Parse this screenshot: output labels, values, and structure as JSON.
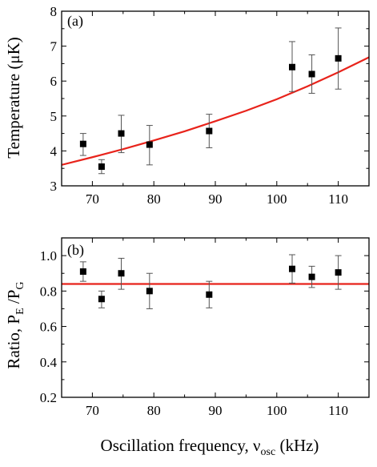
{
  "colors": {
    "fit_line": "#e8231b",
    "markers": "#000000",
    "error_bars": "#555555",
    "axes": "#000000"
  },
  "xlabel": {
    "main": "Oscillation frequency, ν",
    "sub": "osc",
    "unit": " (kHz)"
  },
  "chart_data": [
    {
      "type": "scatter",
      "panel_label": "(a)",
      "ylabel": "Temperature (μK)",
      "xlim": [
        65,
        115
      ],
      "ylim": [
        3,
        8
      ],
      "xticks": [
        70,
        80,
        90,
        100,
        110
      ],
      "yticks": [
        3,
        4,
        5,
        6,
        7,
        8
      ],
      "series": [
        {
          "type": "scatter",
          "marker": "square",
          "x": [
            68.5,
            71.5,
            74.7,
            79.3,
            89.0,
            102.5,
            105.7,
            110.0
          ],
          "y": [
            4.2,
            3.55,
            4.5,
            4.18,
            4.57,
            6.4,
            6.2,
            6.65
          ],
          "yerr_low": [
            0.33,
            0.2,
            0.55,
            0.58,
            0.48,
            0.7,
            0.55,
            0.88
          ],
          "yerr_high": [
            0.3,
            0.2,
            0.52,
            0.55,
            0.48,
            0.73,
            0.55,
            0.87
          ]
        },
        {
          "type": "line",
          "function": "exponential",
          "x": [
            65,
            70,
            75,
            80,
            85,
            90,
            95,
            100,
            105,
            110,
            115
          ],
          "y": [
            3.6,
            3.82,
            4.05,
            4.3,
            4.56,
            4.85,
            5.15,
            5.48,
            5.85,
            6.25,
            6.68
          ]
        }
      ]
    },
    {
      "type": "scatter",
      "panel_label": "(b)",
      "ylabel_main": "Ratio, P",
      "ylabel_sub1": "E",
      "ylabel_mid": " /P",
      "ylabel_sub2": "G",
      "xlim": [
        65,
        115
      ],
      "ylim": [
        0.2,
        1.1
      ],
      "xticks": [
        70,
        80,
        90,
        100,
        110
      ],
      "yticks": [
        0.2,
        0.4,
        0.6,
        0.8,
        1.0
      ],
      "ytick_labels": [
        "0.2",
        "0.4",
        "0.6",
        "0.8",
        "1.0"
      ],
      "series": [
        {
          "type": "scatter",
          "marker": "square",
          "x": [
            68.5,
            71.5,
            74.7,
            79.3,
            89.0,
            102.5,
            105.7,
            110.0
          ],
          "y": [
            0.91,
            0.755,
            0.9,
            0.8,
            0.78,
            0.925,
            0.88,
            0.905
          ],
          "yerr_low": [
            0.055,
            0.05,
            0.09,
            0.1,
            0.075,
            0.08,
            0.06,
            0.095
          ],
          "yerr_high": [
            0.055,
            0.045,
            0.085,
            0.1,
            0.075,
            0.08,
            0.06,
            0.095
          ]
        },
        {
          "type": "line",
          "function": "constant",
          "x": [
            65,
            115
          ],
          "y": [
            0.84,
            0.84
          ]
        }
      ]
    }
  ]
}
